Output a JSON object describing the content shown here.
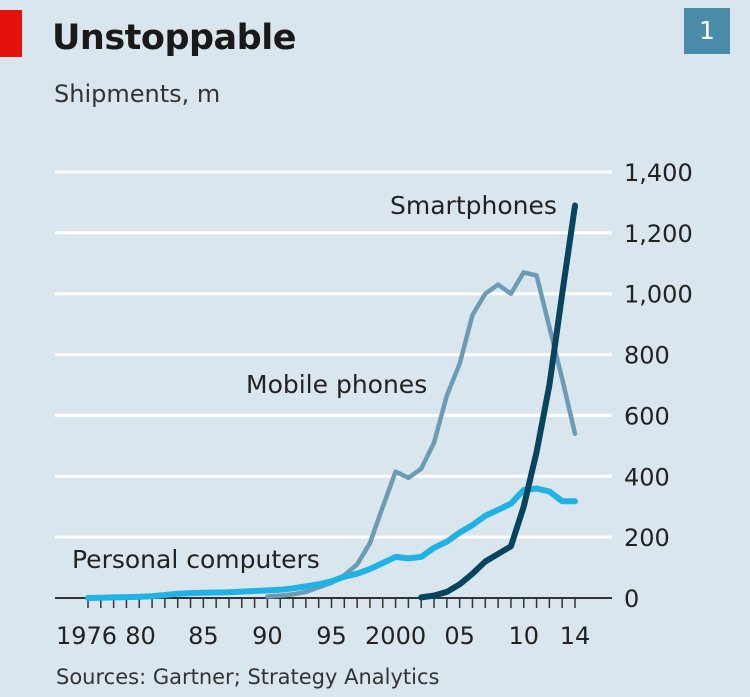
{
  "header": {
    "title": "Unstoppable",
    "subtitle": "Shipments, m",
    "badge": "1"
  },
  "source": "Sources: Gartner; Strategy Analytics",
  "colors": {
    "background": "#d9e6ee",
    "brand_red": "#e3120b",
    "badge": "#4a8ba9",
    "mobile": "#6b9cb4",
    "pc": "#1fb2e3",
    "smartphone": "#07445e",
    "grid": "#ffffff"
  },
  "chart_data": {
    "type": "line",
    "title": "Unstoppable",
    "subtitle": "Shipments, m",
    "ylim": [
      0,
      1400
    ],
    "xlim": [
      1976,
      2014
    ],
    "grid": true,
    "y_axis_side": "right",
    "y_ticks": [
      0,
      200,
      400,
      600,
      800,
      1000,
      1200,
      1400
    ],
    "y_tick_labels": [
      "0",
      "200",
      "400",
      "600",
      "800",
      "1,000",
      "1,200",
      "1,400"
    ],
    "x_ticks": [
      1976,
      1980,
      1985,
      1990,
      1995,
      2000,
      2005,
      2010,
      2014
    ],
    "x_tick_labels": [
      "1976",
      "80",
      "85",
      "90",
      "95",
      "2000",
      "05",
      "10",
      "14"
    ],
    "series": [
      {
        "name": "Mobile phones",
        "color": "#6b9cb4",
        "x": [
          1990,
          1991,
          1992,
          1993,
          1994,
          1995,
          1996,
          1997,
          1998,
          1999,
          2000,
          2001,
          2002,
          2003,
          2004,
          2005,
          2006,
          2007,
          2008,
          2009,
          2010,
          2011,
          2012,
          2013,
          2014
        ],
        "values": [
          5,
          8,
          12,
          20,
          35,
          50,
          75,
          110,
          180,
          300,
          415,
          395,
          425,
          510,
          665,
          770,
          930,
          1000,
          1030,
          1000,
          1070,
          1060,
          890,
          720,
          540
        ]
      },
      {
        "name": "Personal computers",
        "color": "#1fb2e3",
        "x": [
          1976,
          1977,
          1978,
          1979,
          1980,
          1981,
          1982,
          1983,
          1984,
          1985,
          1986,
          1987,
          1988,
          1989,
          1990,
          1991,
          1992,
          1993,
          1994,
          1995,
          1996,
          1997,
          1998,
          1999,
          2000,
          2001,
          2002,
          2003,
          2004,
          2005,
          2006,
          2007,
          2008,
          2009,
          2010,
          2011,
          2012,
          2013,
          2014
        ],
        "values": [
          0,
          1,
          2,
          3,
          4,
          6,
          10,
          14,
          16,
          17,
          18,
          19,
          21,
          23,
          25,
          27,
          32,
          38,
          45,
          55,
          70,
          80,
          95,
          115,
          135,
          130,
          135,
          165,
          185,
          215,
          240,
          270,
          290,
          310,
          355,
          360,
          350,
          318,
          318
        ]
      },
      {
        "name": "Smartphones",
        "color": "#07445e",
        "x": [
          2002,
          2003,
          2004,
          2005,
          2006,
          2007,
          2008,
          2009,
          2010,
          2011,
          2012,
          2013,
          2014
        ],
        "values": [
          2,
          8,
          20,
          45,
          80,
          120,
          145,
          170,
          300,
          480,
          700,
          1000,
          1290
        ]
      }
    ],
    "annotations": [
      {
        "text": "Smartphones",
        "series": "Smartphones"
      },
      {
        "text": "Mobile phones",
        "series": "Mobile phones"
      },
      {
        "text": "Personal computers",
        "series": "Personal computers"
      }
    ]
  }
}
